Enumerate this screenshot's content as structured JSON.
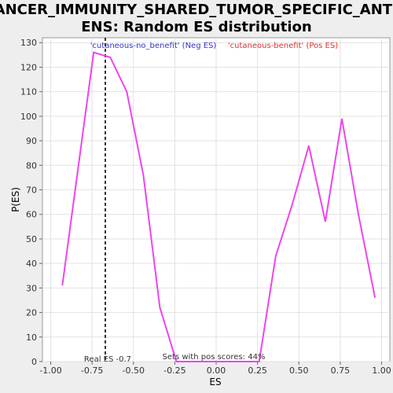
{
  "chart_data": {
    "type": "line",
    "title_line1": "CANCER_IMMUNITY_SHARED_TUMOR_SPECIFIC_ANTIG",
    "title_line2": "ENS: Random ES distribution",
    "xlabel": "ES",
    "ylabel": "P(ES)",
    "xlim": [
      -1.05,
      1.05
    ],
    "ylim": [
      0,
      132
    ],
    "x_ticks": [
      -1.0,
      -0.75,
      -0.5,
      -0.25,
      0.0,
      0.25,
      0.5,
      0.75,
      1.0
    ],
    "x_tick_labels": [
      "-1.00",
      "-0.75",
      "-0.50",
      "-0.25",
      "0.00",
      "0.25",
      "0.50",
      "0.75",
      "1.00"
    ],
    "y_ticks": [
      0,
      10,
      20,
      30,
      40,
      50,
      60,
      70,
      80,
      90,
      100,
      110,
      120,
      130
    ],
    "grid": true,
    "legend_neg": "'cutaneous-no_benefit' (Neg ES)",
    "legend_pos": "'cutaneous-benefit' (Pos ES)",
    "series": [
      {
        "color": "#ee44ee",
        "x": [
          -0.93,
          -0.74,
          -0.64,
          -0.54,
          -0.44,
          -0.34,
          -0.24,
          0.26,
          0.36,
          0.46,
          0.56,
          0.66,
          0.76,
          0.86,
          0.96
        ],
        "y": [
          31,
          126,
          124,
          110,
          76,
          22,
          0,
          0,
          43,
          64,
          88,
          57,
          99,
          60,
          26
        ]
      }
    ],
    "real_es": -0.67,
    "real_es_label": "Real ES -0.7",
    "pos_scores_label": "Sets with pos scores: 44%"
  }
}
